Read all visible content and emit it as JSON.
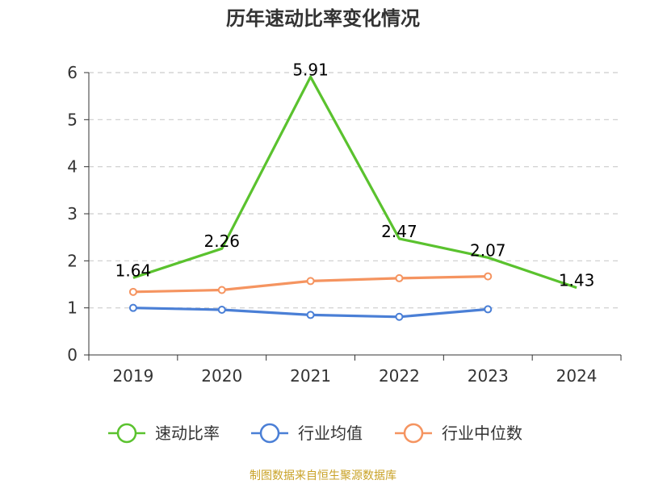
{
  "chart_data": {
    "type": "line",
    "title": "历年速动比率变化情况",
    "categories": [
      "2019",
      "2020",
      "2021",
      "2022",
      "2023",
      "2024"
    ],
    "ylim": [
      0,
      6
    ],
    "yticks": [
      "0",
      "1",
      "2",
      "3",
      "4",
      "5",
      "6"
    ],
    "grid": true,
    "legend_position": "bottom",
    "series": [
      {
        "name": "速动比率",
        "color": "#5ac22e",
        "values": [
          1.64,
          2.26,
          5.91,
          2.47,
          2.07,
          1.43
        ],
        "labels": [
          "1.64",
          "2.26",
          "5.91",
          "2.47",
          "2.07",
          "1.43"
        ]
      },
      {
        "name": "行业均值",
        "color": "#4a7fd6",
        "values": [
          1.0,
          0.96,
          0.85,
          0.81,
          0.97,
          null
        ]
      },
      {
        "name": "行业中位数",
        "color": "#f59460",
        "values": [
          1.34,
          1.38,
          1.57,
          1.63,
          1.67,
          null
        ]
      }
    ]
  },
  "footer": {
    "source": "制图数据来自恒生聚源数据库"
  }
}
